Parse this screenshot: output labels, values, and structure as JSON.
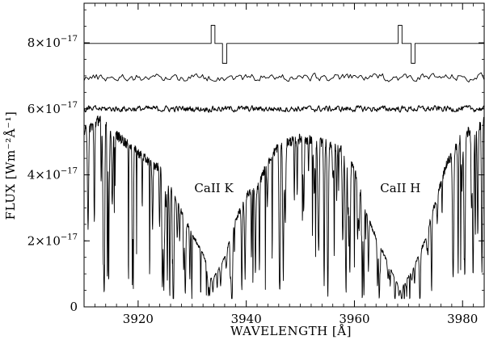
{
  "chart_data": {
    "type": "line",
    "xlabel": "WAVELENGTH [Å]",
    "ylabel": "FLUX [Wm⁻²Å⁻¹]",
    "xlim": [
      3910,
      3984
    ],
    "ylim": [
      0,
      9.2e-17
    ],
    "x_ticks": [
      3920,
      3940,
      3960,
      3980
    ],
    "x_tick_labels": [
      "3920",
      "3940",
      "3960",
      "3980"
    ],
    "y_ticks": [
      0,
      2e-17,
      4e-17,
      6e-17,
      8e-17
    ],
    "y_tick_labels": [
      {
        "mant": "0",
        "exp": ""
      },
      {
        "mant": "2×10",
        "exp": "−17"
      },
      {
        "mant": "4×10",
        "exp": "−17"
      },
      {
        "mant": "6×10",
        "exp": "−17"
      },
      {
        "mant": "8×10",
        "exp": "−17"
      }
    ],
    "annotations": [
      {
        "text": "CaII  K",
        "x": 3934,
        "y": 3.47e-17
      },
      {
        "text": "CaII  H",
        "x": 3968.5,
        "y": 3.47e-17
      }
    ],
    "series": [
      {
        "kind": "step",
        "level": 7.98e-17,
        "features": [
          {
            "x": 3933.5,
            "x2": 3934.2,
            "dy": 5.5e-18
          },
          {
            "x": 3935.6,
            "x2": 3936.4,
            "dy": -6e-18
          },
          {
            "x": 3968.1,
            "x2": 3968.8,
            "dy": 5.5e-18
          },
          {
            "x": 3970.5,
            "x2": 3971.2,
            "dy": -6e-18
          }
        ]
      },
      {
        "kind": "noise",
        "level": 6.95e-17,
        "amplitude": 1.8e-18,
        "points": 260
      },
      {
        "kind": "noise",
        "level": 6e-17,
        "amplitude": 1.4e-18,
        "points": 600
      },
      {
        "kind": "spectrum",
        "continuum": [
          [
            3910,
            5.3e-17
          ],
          [
            3913,
            5.7e-17
          ],
          [
            3916,
            5.2e-17
          ],
          [
            3919,
            4.8e-17
          ],
          [
            3922,
            4.4e-17
          ],
          [
            3925,
            4.1e-17
          ],
          [
            3928,
            2.9e-17
          ],
          [
            3930,
            2.2e-17
          ],
          [
            3932,
            1.6e-17
          ],
          [
            3933.7,
            8e-18
          ],
          [
            3936,
            1.5e-17
          ],
          [
            3938,
            2.6e-17
          ],
          [
            3940,
            3.4e-17
          ],
          [
            3942,
            3.6e-17
          ],
          [
            3944,
            4.4e-17
          ],
          [
            3946,
            4.9e-17
          ],
          [
            3950,
            5.1e-17
          ],
          [
            3954,
            5e-17
          ],
          [
            3958,
            4.8e-17
          ],
          [
            3960,
            4.2e-17
          ],
          [
            3962,
            2.9e-17
          ],
          [
            3964,
            2.1e-17
          ],
          [
            3966,
            1.4e-17
          ],
          [
            3968.5,
            5e-18
          ],
          [
            3971,
            1.2e-17
          ],
          [
            3973,
            2e-17
          ],
          [
            3975,
            3.2e-17
          ],
          [
            3977,
            4.3e-17
          ],
          [
            3980,
            5.2e-17
          ],
          [
            3984,
            5.6e-17
          ]
        ],
        "absorption_lines": 150,
        "points": 1600
      }
    ]
  }
}
